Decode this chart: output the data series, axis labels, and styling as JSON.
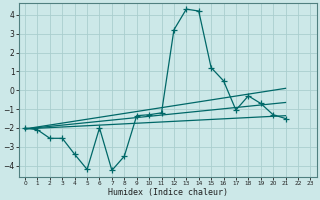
{
  "bg_color": "#cce8e8",
  "grid_color": "#aacece",
  "line_color": "#006868",
  "xlabel": "Humidex (Indice chaleur)",
  "xlim": [
    -0.5,
    23.5
  ],
  "ylim": [
    -4.6,
    4.6
  ],
  "yticks": [
    -4,
    -3,
    -2,
    -1,
    0,
    1,
    2,
    3,
    4
  ],
  "xticks": [
    0,
    1,
    2,
    3,
    4,
    5,
    6,
    7,
    8,
    9,
    10,
    11,
    12,
    13,
    14,
    15,
    16,
    17,
    18,
    19,
    20,
    21,
    22,
    23
  ],
  "main_x": [
    0,
    1,
    2,
    3,
    4,
    5,
    6,
    7,
    8,
    9,
    10,
    11,
    12,
    13,
    14,
    15,
    16,
    17,
    18,
    19,
    20,
    21
  ],
  "main_y": [
    -2.0,
    -2.1,
    -2.55,
    -2.55,
    -3.4,
    -4.2,
    -2.0,
    -4.25,
    -3.5,
    -1.35,
    -1.3,
    -1.2,
    3.2,
    4.3,
    4.2,
    1.2,
    0.5,
    -1.05,
    -0.3,
    -0.7,
    -1.3,
    -1.5
  ],
  "trend1_x": [
    0,
    21
  ],
  "trend1_y": [
    -2.05,
    -1.35
  ],
  "trend2_x": [
    0,
    21
  ],
  "trend2_y": [
    -2.05,
    -0.65
  ],
  "trend3_x": [
    0,
    21
  ],
  "trend3_y": [
    -2.05,
    0.1
  ]
}
